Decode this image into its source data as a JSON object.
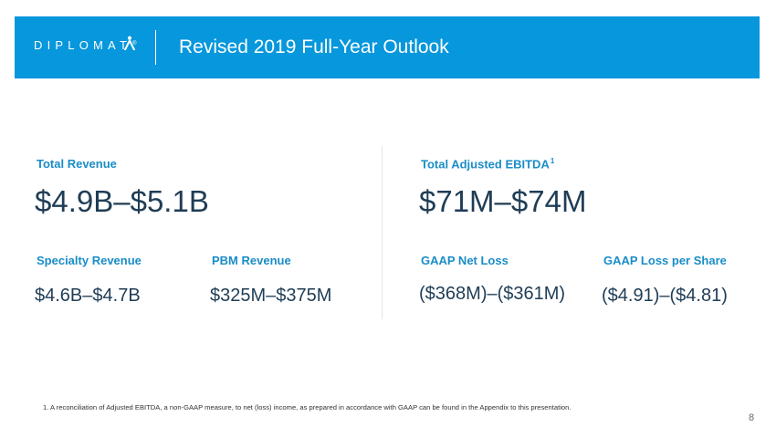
{
  "header": {
    "logo_text": "DIPLOMAT",
    "logo_reg": "®",
    "title": "Revised 2019 Full-Year Outlook"
  },
  "left": {
    "total_revenue_label": "Total Revenue",
    "total_revenue_value": "$4.9B–$5.1B",
    "specialty_label": "Specialty Revenue",
    "specialty_value": "$4.6B–$4.7B",
    "pbm_label": "PBM Revenue",
    "pbm_value": "$325M–$375M"
  },
  "right": {
    "ebitda_label": "Total Adjusted EBITDA",
    "ebitda_footnote_ref": "1",
    "ebitda_value": "$71M–$74M",
    "net_loss_label": "GAAP Net Loss",
    "net_loss_value": "($368M)–($361M)",
    "loss_per_share_label": "GAAP Loss per Share",
    "loss_per_share_value": "($4.91)–($4.81)"
  },
  "footnote": "1. A reconciliation of Adjusted EBITDA, a non-GAAP measure, to net (loss) income, as prepared in accordance with GAAP can be found in the Appendix to this presentation.",
  "page_number": "8",
  "colors": {
    "header_bg": "#0797dc",
    "label": "#1a8dc7",
    "value": "#1f3d56"
  }
}
